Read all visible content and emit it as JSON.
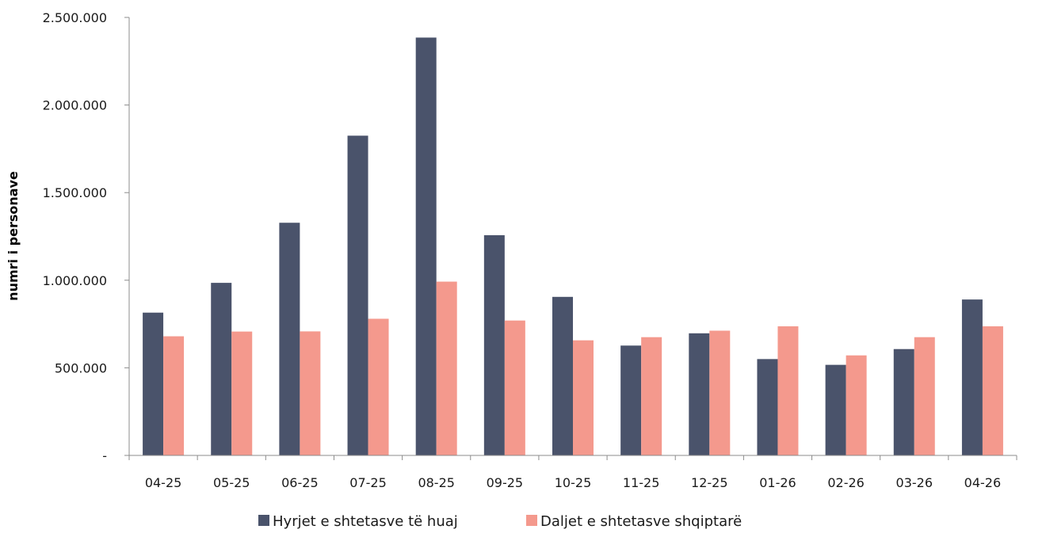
{
  "chart_data": {
    "type": "bar",
    "title": "",
    "xlabel": "",
    "ylabel": "numri i personave",
    "categories": [
      "04-25",
      "05-25",
      "06-25",
      "07-25",
      "08-25",
      "09-25",
      "10-25",
      "11-25",
      "12-25",
      "01-26",
      "02-26",
      "03-26",
      "04-26"
    ],
    "series": [
      {
        "name": "Hyrjet e shtetasve të huaj",
        "color": "#4a536b",
        "values": [
          815000,
          985000,
          1328000,
          1825000,
          2385000,
          1257000,
          905000,
          627000,
          697000,
          550000,
          517000,
          607000,
          890000
        ]
      },
      {
        "name": "Daljet e shtetasve shqiptarë",
        "color": "#f4998d",
        "values": [
          680000,
          707000,
          708000,
          780000,
          992000,
          770000,
          657000,
          675000,
          712000,
          737000,
          571000,
          675000,
          737000
        ]
      }
    ],
    "ylim": [
      0,
      2500000
    ],
    "yticks": [
      0,
      500000,
      1000000,
      1500000,
      2000000,
      2500000
    ],
    "ytick_labels": [
      "-",
      "500.000",
      "1.000.000",
      "1.500.000",
      "2.000.000",
      "2.500.000"
    ],
    "grid": false,
    "legend_position": "bottom"
  }
}
